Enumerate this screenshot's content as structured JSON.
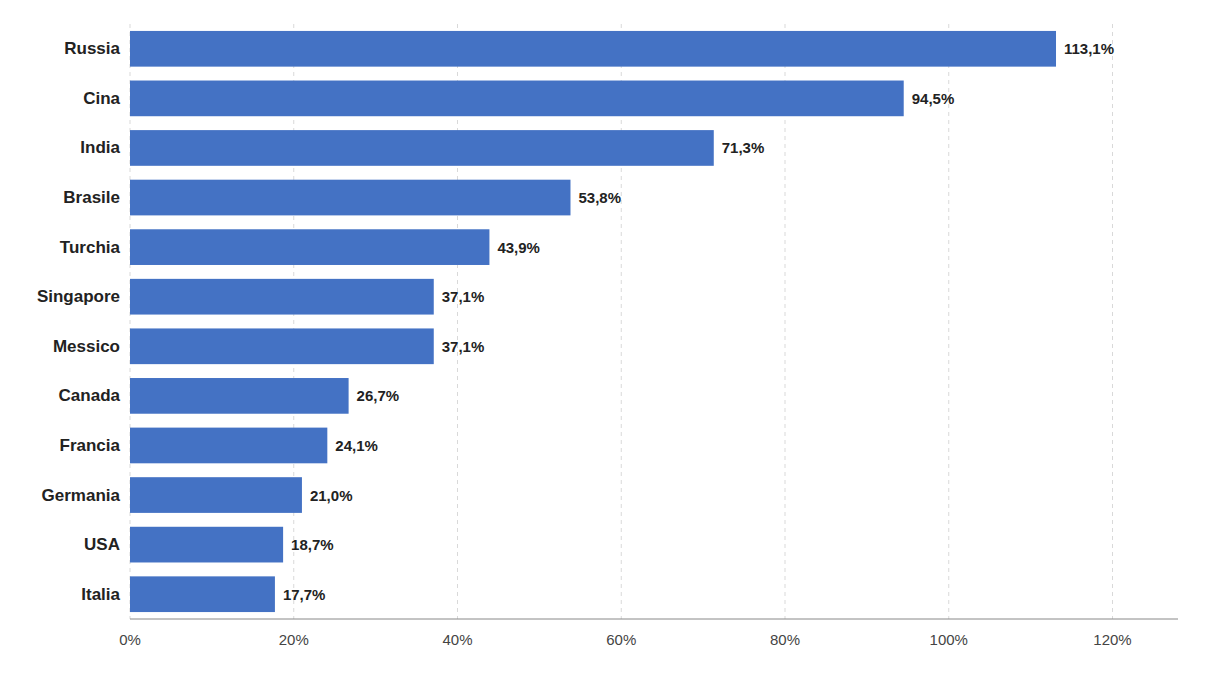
{
  "chart_data": {
    "type": "bar",
    "orientation": "horizontal",
    "categories": [
      "Italia",
      "USA",
      "Germania",
      "Francia",
      "Canada",
      "Messico",
      "Singapore",
      "Turchia",
      "Brasile",
      "India",
      "Cina",
      "Russia"
    ],
    "values": [
      17.7,
      18.7,
      21.0,
      24.1,
      26.7,
      37.1,
      37.1,
      43.9,
      53.8,
      71.3,
      94.5,
      113.1
    ],
    "value_labels": [
      "17,7%",
      "18,7%",
      "21,0%",
      "24,1%",
      "26,7%",
      "37,1%",
      "37,1%",
      "43,9%",
      "53,8%",
      "71,3%",
      "94,5%",
      "113,1%"
    ],
    "data_labels": true,
    "xlim": [
      0,
      128
    ],
    "xticks": [
      {
        "value": 0,
        "label": "0%"
      },
      {
        "value": 20,
        "label": "20%"
      },
      {
        "value": 40,
        "label": "40%"
      },
      {
        "value": 60,
        "label": "60%"
      },
      {
        "value": 80,
        "label": "80%"
      },
      {
        "value": 100,
        "label": "100%"
      },
      {
        "value": 120,
        "label": "120%"
      }
    ],
    "grid": true
  }
}
